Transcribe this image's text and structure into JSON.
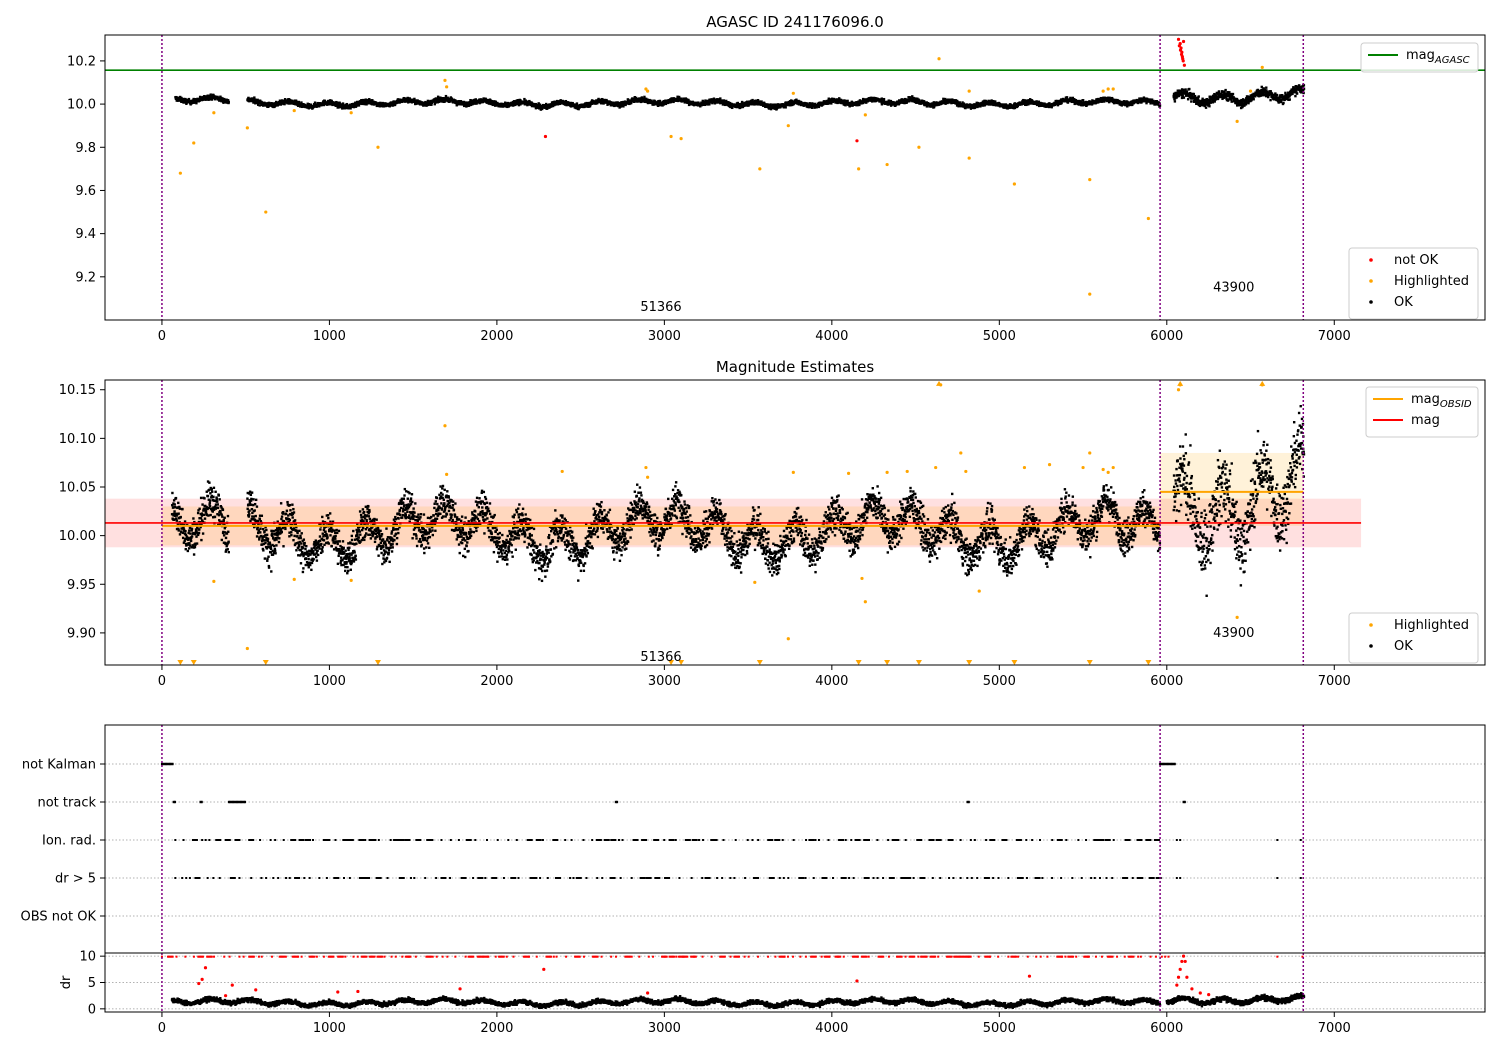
{
  "chart_data": [
    {
      "type": "scatter",
      "title": "AGASC ID 241176096.0",
      "x_range": [
        -340,
        7900
      ],
      "y_range": [
        9.0,
        10.32
      ],
      "x_ticks": [
        0,
        1000,
        2000,
        3000,
        4000,
        5000,
        6000,
        7000
      ],
      "y_ticks": [
        9.2,
        9.4,
        9.6,
        9.8,
        10.0,
        10.2
      ],
      "obs_boundaries": [
        0,
        5960,
        6815
      ],
      "obsid_labels": [
        {
          "text": "51366",
          "x": 2980,
          "y": 9.06
        },
        {
          "text": "43900",
          "x": 6400,
          "y": 9.15
        }
      ],
      "mag_agasc": 10.157,
      "legend_lines": [
        {
          "name": "mag",
          "sub": "AGASC",
          "color": "#008000"
        }
      ],
      "legend_points": [
        {
          "name": "not OK",
          "color": "#ff0000"
        },
        {
          "name": "Highlighted",
          "color": "#ffa500"
        },
        {
          "name": "OK",
          "color": "#000000"
        }
      ],
      "series": [
        {
          "name": "OK",
          "color": "#000000",
          "segments": [
            [
              80,
              400,
              10.015,
              0.04
            ],
            [
              510,
              5960,
              10.005,
              0.04
            ],
            [
              6040,
              6820,
              10.04,
              0.08
            ]
          ]
        },
        {
          "name": "Highlighted",
          "color": "#ffa500",
          "x": [
            110,
            190,
            310,
            510,
            620,
            790,
            1130,
            1290,
            1690,
            2890,
            3040,
            3100,
            3570,
            3740,
            4160,
            4200,
            4330,
            4520,
            4640,
            4820,
            5090,
            5540,
            5540,
            5890,
            6420,
            6570,
            5650,
            5620,
            5680,
            4820,
            3770,
            2900,
            1700,
            6500
          ],
          "y": [
            9.68,
            9.82,
            9.96,
            9.89,
            9.5,
            9.97,
            9.96,
            9.8,
            10.11,
            10.07,
            9.85,
            9.84,
            9.7,
            9.9,
            9.7,
            9.95,
            9.72,
            9.8,
            10.21,
            9.75,
            9.63,
            9.65,
            9.12,
            9.47,
            9.92,
            10.17,
            10.07,
            10.06,
            10.07,
            10.06,
            10.05,
            10.06,
            10.08,
            10.06
          ]
        },
        {
          "name": "not OK",
          "color": "#ff0000",
          "x": [
            2290,
            4150,
            6070,
            6080,
            6085,
            6090,
            6095,
            6100,
            6075,
            6082,
            6088,
            6093,
            6098,
            6105
          ],
          "y": [
            9.85,
            9.83,
            10.3,
            10.28,
            10.26,
            10.24,
            10.21,
            10.29,
            10.27,
            10.25,
            10.23,
            10.22,
            10.2,
            10.18
          ]
        }
      ]
    },
    {
      "type": "scatter",
      "title": "Magnitude Estimates",
      "x_range": [
        -340,
        7900
      ],
      "y_range": [
        9.867,
        10.16
      ],
      "x_ticks": [
        0,
        1000,
        2000,
        3000,
        4000,
        5000,
        6000,
        7000
      ],
      "y_ticks": [
        9.9,
        9.95,
        10.0,
        10.05,
        10.1,
        10.15
      ],
      "obs_boundaries": [
        0,
        5960,
        6815
      ],
      "obsid_labels": [
        {
          "text": "51366",
          "x": 2980,
          "y": 9.875
        },
        {
          "text": "43900",
          "x": 6400,
          "y": 9.9
        }
      ],
      "mag": 10.013,
      "mag_band": [
        9.988,
        10.038
      ],
      "mag_obsid": [
        {
          "x": [
            0,
            5960
          ],
          "mag": 10.01,
          "band": [
            9.99,
            10.03
          ]
        },
        {
          "x": [
            5960,
            6815
          ],
          "mag": 10.045,
          "band": [
            10.01,
            10.085
          ]
        }
      ],
      "legend_lines": [
        {
          "name": "mag",
          "sub": "OBSID",
          "color": "#ffa500"
        },
        {
          "name": "mag",
          "sub": "",
          "color": "#ff0000"
        }
      ],
      "legend_points": [
        {
          "name": "Highlighted",
          "color": "#ffa500"
        },
        {
          "name": "OK",
          "color": "#000000"
        }
      ],
      "series": [
        {
          "name": "OK",
          "color": "#000000",
          "segments": [
            [
              60,
              400,
              10.005,
              0.07
            ],
            [
              510,
              5960,
              10.005,
              0.07
            ],
            [
              6040,
              6820,
              10.045,
              0.13
            ]
          ]
        },
        {
          "name": "Highlighted",
          "color": "#ffa500",
          "x": [
            310,
            510,
            790,
            1130,
            1690,
            1700,
            2390,
            2890,
            2900,
            3540,
            3740,
            3770,
            4100,
            4180,
            4200,
            4330,
            4450,
            4620,
            4650,
            4770,
            4800,
            4880,
            5150,
            5300,
            5500,
            5540,
            5620,
            5650,
            5680,
            6070,
            6080,
            6570,
            6420
          ],
          "y": [
            9.953,
            9.884,
            9.955,
            9.954,
            10.113,
            10.063,
            10.066,
            10.07,
            10.06,
            9.952,
            9.894,
            10.065,
            10.064,
            9.956,
            9.932,
            10.065,
            10.066,
            10.07,
            10.155,
            10.085,
            10.066,
            9.943,
            10.07,
            10.073,
            10.07,
            10.085,
            10.068,
            10.065,
            10.07,
            10.15,
            10.155,
            10.155,
            9.916
          ]
        },
        {
          "name": "Highlighted (off-scale)",
          "color": "#ffa500",
          "marker": "triangle-down",
          "x": [
            110,
            190,
            620,
            1290,
            3040,
            3100,
            3570,
            4160,
            4330,
            4520,
            4820,
            5090,
            5540,
            5890
          ],
          "y": [
            9.869,
            9.869,
            9.869,
            9.869,
            9.869,
            9.869,
            9.869,
            9.869,
            9.869,
            9.869,
            9.869,
            9.869,
            9.869,
            9.869
          ]
        },
        {
          "name": "Highlighted (off-scale high)",
          "color": "#ffa500",
          "marker": "triangle-up",
          "x": [
            4640,
            6080,
            6570
          ],
          "y": [
            10.157,
            10.157,
            10.157
          ]
        }
      ]
    },
    {
      "type": "scatter",
      "title": "",
      "x_range": [
        -340,
        7900
      ],
      "x_ticks": [
        0,
        1000,
        2000,
        3000,
        4000,
        5000,
        6000,
        7000
      ],
      "flags": [
        "not Kalman",
        "not track",
        "Ion. rad.",
        "dr > 5",
        "OBS not OK"
      ],
      "obs_boundaries": [
        0,
        5960,
        6815
      ],
      "flag_points": {
        "not Kalman": [
          [
            0,
            70
          ],
          [
            5960,
            6050
          ]
        ],
        "not track": [
          [
            70,
            80
          ],
          [
            230,
            240
          ],
          [
            400,
            500
          ],
          [
            2710,
            2720
          ],
          [
            4810,
            4820
          ],
          [
            6100,
            6110
          ]
        ],
        "Ion. rad.": "periodic",
        "dr > 5": "periodic",
        "OBS not OK": []
      },
      "dr_ylabel": "dr",
      "dr_ticks": [
        0,
        5,
        10
      ],
      "dr_range": [
        -0.6,
        10.6
      ],
      "dr_series": [
        {
          "name": "OK",
          "color": "#000000",
          "segments": [
            [
              60,
              5960,
              1.2,
              1.5
            ],
            [
              6000,
              6820,
              1.8,
              1.8
            ]
          ]
        },
        {
          "name": "not OK",
          "color": "#ff0000",
          "x": [
            220,
            240,
            260,
            380,
            420,
            560,
            1050,
            1170,
            1780,
            2280,
            2900,
            4150,
            5180,
            6060,
            6070,
            6080,
            6090,
            6100,
            6110,
            6120,
            6150,
            6200,
            6250
          ],
          "y": [
            4.8,
            5.6,
            7.8,
            2.5,
            4.5,
            3.6,
            3.2,
            3.3,
            3.8,
            7.5,
            3.0,
            5.3,
            6.2,
            4.5,
            6,
            7.5,
            9,
            10,
            9,
            6,
            3.8,
            3,
            2.7
          ]
        }
      ]
    }
  ]
}
